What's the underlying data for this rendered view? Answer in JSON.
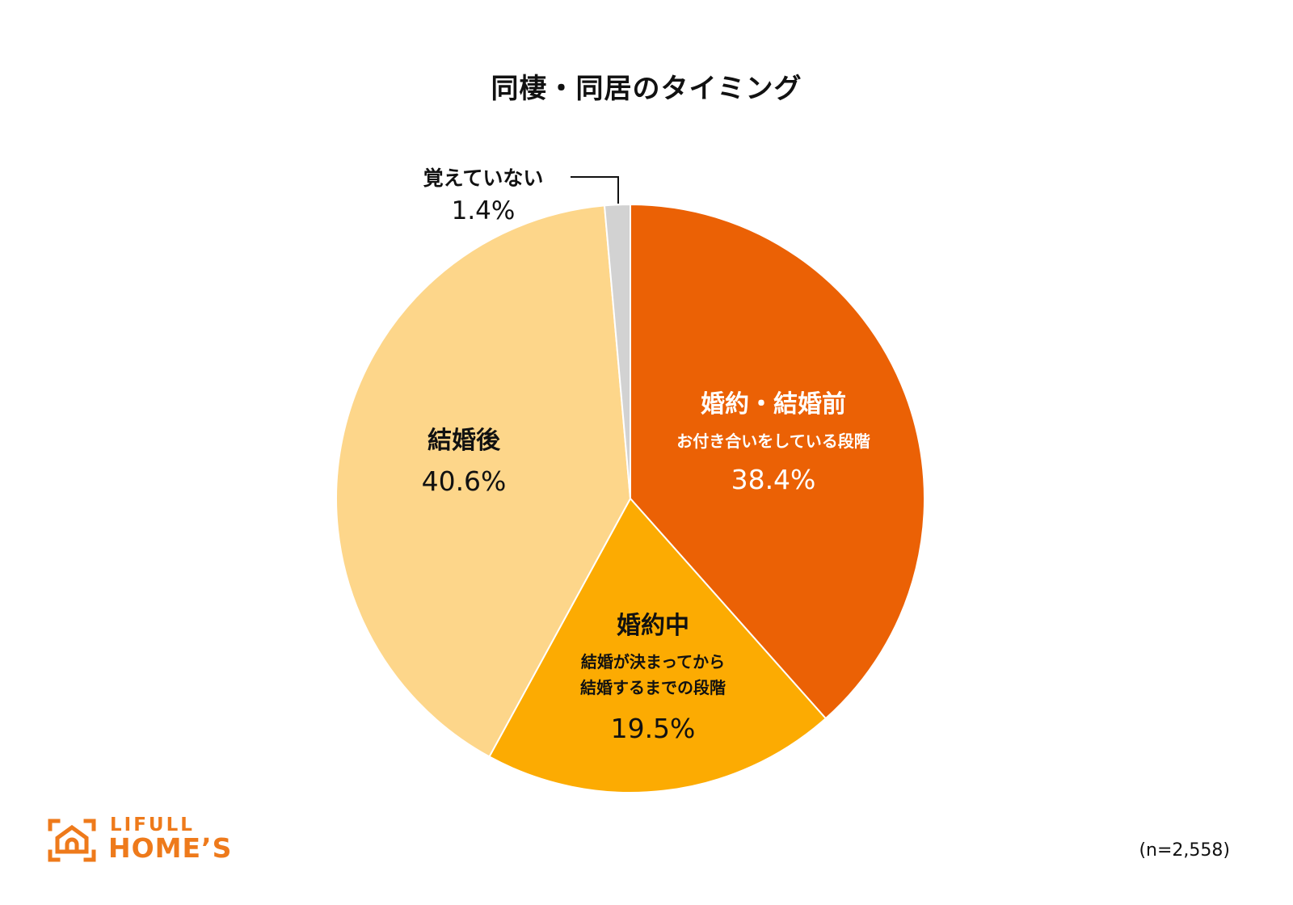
{
  "chart_data": {
    "type": "pie",
    "title": "同棲・同居のタイミング",
    "slices": [
      {
        "name": "婚約・結婚前",
        "sub": "お付き合いをしている段階",
        "value": 38.4,
        "label": "38.4%",
        "color": "#eb6105",
        "text_color": "#ffffff"
      },
      {
        "name": "婚約中",
        "sub": "結婚が決まってから\n結婚するまでの段階",
        "value": 19.5,
        "label": "19.5%",
        "color": "#fcab02",
        "text_color": "#111111"
      },
      {
        "name": "結婚後",
        "sub": "",
        "value": 40.6,
        "label": "40.6%",
        "color": "#fdd68a",
        "text_color": "#111111"
      },
      {
        "name": "覚えていない",
        "sub": "",
        "value": 1.4,
        "label": "1.4%",
        "color": "#d2d2d2",
        "text_color": "#111111"
      }
    ],
    "note": "(n=2,558)"
  },
  "logo": {
    "line1": "LIFULL",
    "line2": "HOME’S",
    "color": "#ee7a1b"
  }
}
